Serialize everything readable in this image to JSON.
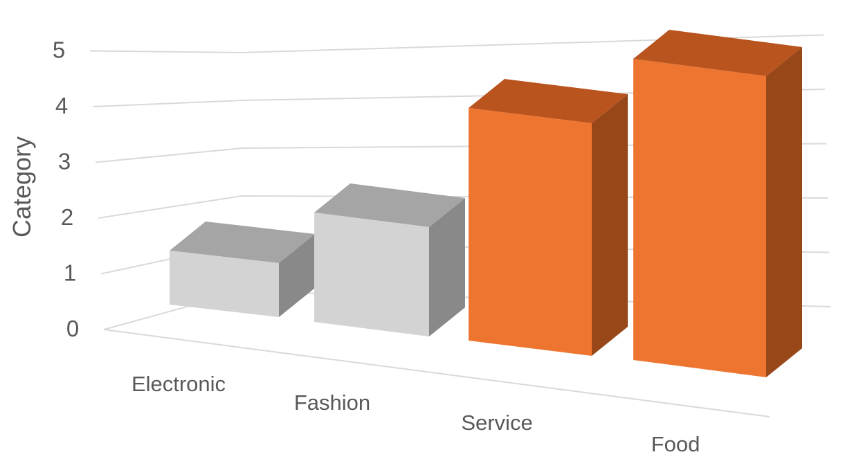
{
  "chart_data": {
    "type": "bar",
    "style": "3d-column",
    "categories": [
      "Electronic",
      "Fashion",
      "Service",
      "Food"
    ],
    "values": [
      1,
      2,
      4,
      5
    ],
    "ylabel": "Category",
    "xlabel": "",
    "title": "",
    "ylim": [
      0,
      5
    ],
    "yticks": [
      "0",
      "1",
      "2",
      "3",
      "4",
      "5"
    ],
    "grid": true,
    "legend": "none",
    "bar_colors": [
      "#d3d3d3",
      "#d3d3d3",
      "#ed7530",
      "#ed7530"
    ],
    "top_colors": [
      "#a5a5a5",
      "#a5a5a5",
      "#b9541f",
      "#b9541f"
    ],
    "side_colors": [
      "#898989",
      "#898989",
      "#974718",
      "#974718"
    ]
  }
}
